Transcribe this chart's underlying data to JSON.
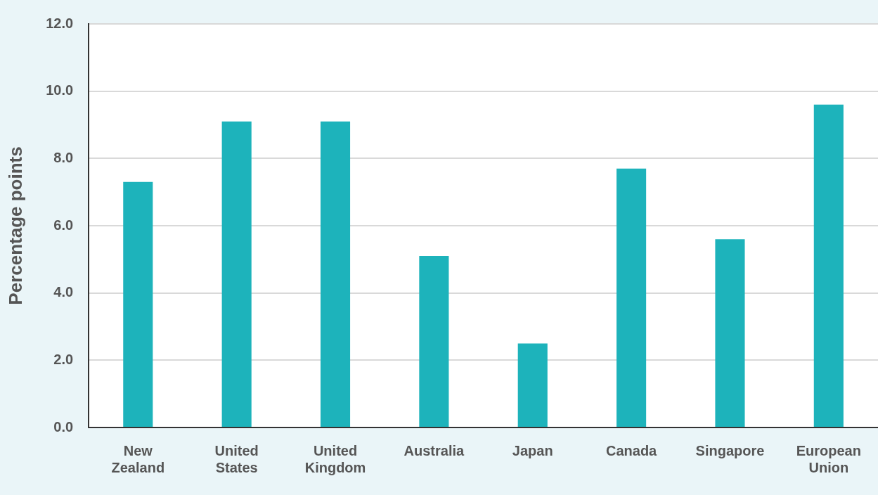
{
  "chart_data": {
    "type": "bar",
    "ylabel": "Percentage points",
    "categories": [
      "New Zealand",
      "United States",
      "United Kingdom",
      "Australia",
      "Japan",
      "Canada",
      "Singapore",
      "European Union"
    ],
    "values": [
      7.3,
      9.1,
      9.1,
      5.1,
      2.5,
      7.7,
      5.6,
      9.6
    ],
    "color": "#1db3bb",
    "ylim": [
      0,
      12
    ],
    "yticks": [
      {
        "value": 0,
        "label": "0.0"
      },
      {
        "value": 2,
        "label": "2.0"
      },
      {
        "value": 4,
        "label": "4.0"
      },
      {
        "value": 6,
        "label": "6.0"
      },
      {
        "value": 8,
        "label": "8.0"
      },
      {
        "value": 10,
        "label": "10.0"
      },
      {
        "value": 12,
        "label": "12.0"
      }
    ],
    "grid": "y",
    "legend": false
  }
}
